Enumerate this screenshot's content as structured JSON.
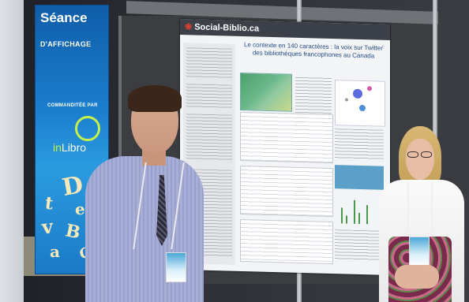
{
  "banner": {
    "title_line1": "Séance",
    "title_line2": "D'AFFICHAGE",
    "sponsor_label": "COMMANDITÉE PAR",
    "sponsor_brand_prefix": "in",
    "sponsor_brand_suffix": "Libro"
  },
  "poster": {
    "site": "Social-Biblio.ca",
    "title": "Le contexte en 140 caractères : la voix sur Twitter des bibliothèques francophones au Canada"
  },
  "colors": {
    "banner_blue": "#1b7fd0",
    "brand_green": "#c6f04a",
    "poster_title_blue": "#224c8a"
  }
}
